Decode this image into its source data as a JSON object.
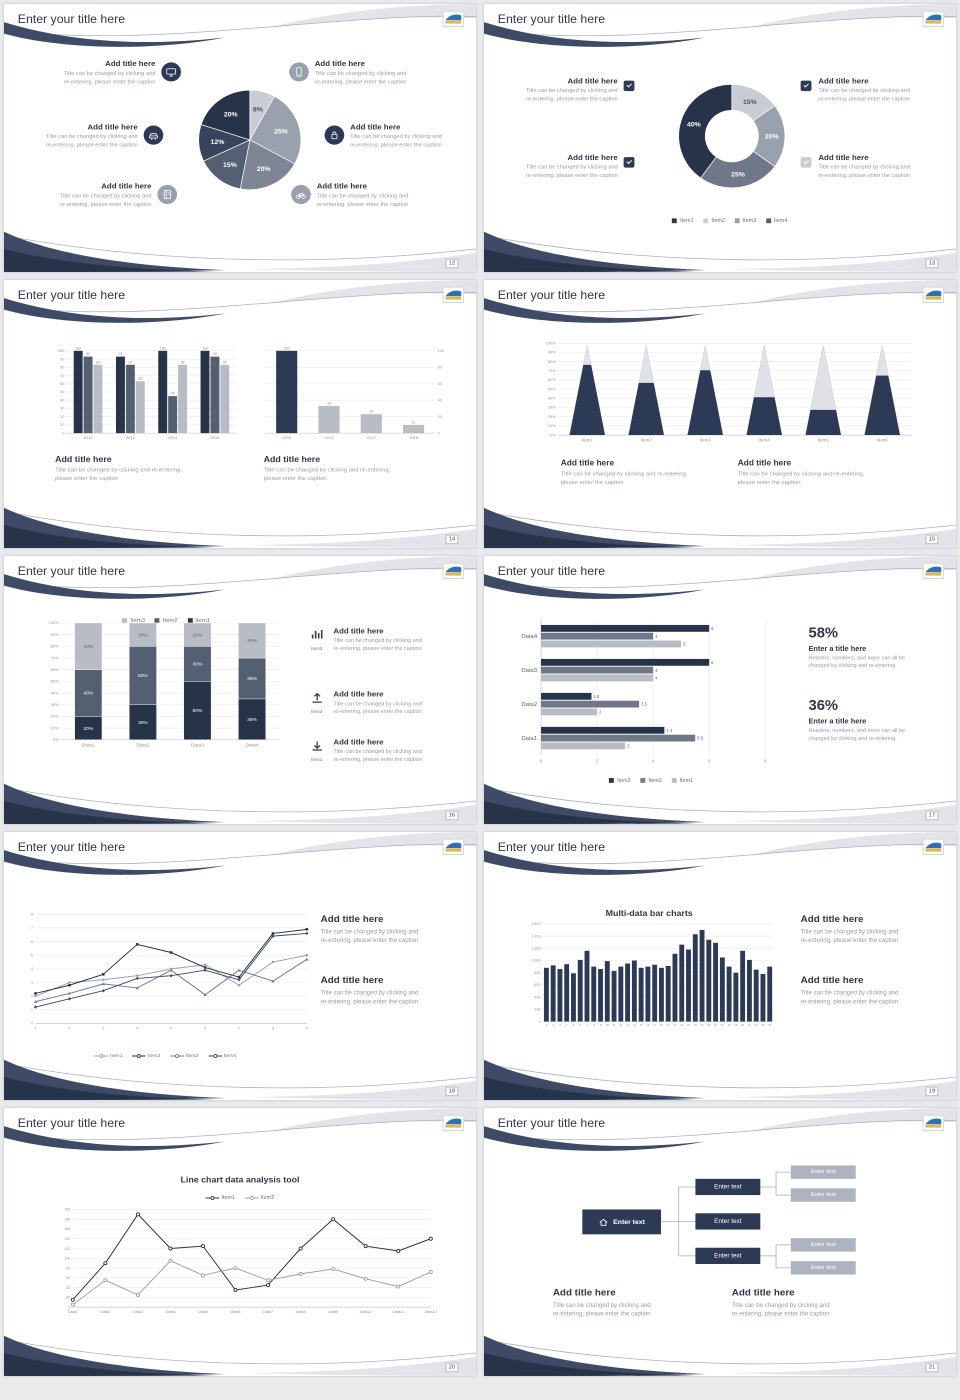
{
  "page_background": "#e9eaec",
  "palette": {
    "navy_dark": "#273349",
    "navy": "#2d3a55",
    "slate": "#555f72",
    "mid_gray": "#7e8695",
    "gray": "#9aa1ae",
    "light_gray": "#b8bcc5",
    "pale_gray": "#c9ccd4",
    "accent_blue": "#2f6fb5",
    "accent_yellow": "#e5b93e",
    "text_dark": "#30364a",
    "text_muted": "#989da8"
  },
  "common": {
    "slide_title": "Enter your title here",
    "add_title": "Add title here",
    "cap1": "Title can be changed by clicking and",
    "cap2": "re-entering, please enter the caption",
    "cap_b1": "Title can be changed by clicking and re-entering,",
    "cap_b2": "please enter the caption",
    "stat_title": "Enter a title here",
    "stat_cap1": "Headers, numbers, and more can all be",
    "stat_cap2": "changed by clicking and re-entering."
  },
  "slides": {
    "s12": {
      "page": "12"
    },
    "s13": {
      "page": "13"
    },
    "s14": {
      "page": "14"
    },
    "s15": {
      "page": "15"
    },
    "s16": {
      "page": "16",
      "rows": [
        {
          "label": "Item3"
        },
        {
          "label": "Item2"
        },
        {
          "label": "Item1"
        }
      ]
    },
    "s17": {
      "page": "17",
      "stats": [
        {
          "value": "58%"
        },
        {
          "value": "36%"
        }
      ]
    },
    "s18": {
      "page": "18"
    },
    "s19": {
      "page": "19"
    },
    "s20": {
      "page": "20"
    },
    "s21": {
      "page": "21"
    }
  },
  "chart_data": [
    {
      "id": "pie12",
      "type": "pie",
      "slide_page": "12",
      "slices": [
        {
          "label": "8%",
          "value": 8,
          "color": "#c9ccd4",
          "text": "#4a5162"
        },
        {
          "label": "25%",
          "value": 25,
          "color": "#9aa1ae",
          "text": "#ffffff"
        },
        {
          "label": "20%",
          "value": 20,
          "color": "#7e8695",
          "text": "#ffffff"
        },
        {
          "label": "15%",
          "value": 15,
          "color": "#555f72",
          "text": "#ffffff"
        },
        {
          "label": "12%",
          "value": 12,
          "color": "#39445c",
          "text": "#ffffff"
        },
        {
          "label": "20%",
          "value": 20,
          "color": "#273349",
          "text": "#ffffff"
        }
      ],
      "start_angle_deg": -90,
      "clockwise": true
    },
    {
      "id": "donut13",
      "type": "pie",
      "subtype": "donut",
      "slide_page": "13",
      "slices": [
        {
          "label": "15%",
          "value": 15,
          "color": "#c9ccd4",
          "text": "#4a5162"
        },
        {
          "label": "20%",
          "value": 20,
          "color": "#9aa1ae",
          "text": "#ffffff"
        },
        {
          "label": "25%",
          "value": 25,
          "color": "#6f7789",
          "text": "#ffffff"
        },
        {
          "label": "40%",
          "value": 40,
          "color": "#273349",
          "text": "#ffffff"
        }
      ],
      "legend": [
        {
          "label": "Item1",
          "color": "#273349"
        },
        {
          "label": "Item2",
          "color": "#c9ccd4"
        },
        {
          "label": "Item3",
          "color": "#9aa1ae"
        },
        {
          "label": "Item4",
          "color": "#555f72"
        }
      ]
    },
    {
      "id": "col14a",
      "type": "bar",
      "slide_page": "14",
      "categories": [
        "2010",
        "2012",
        "2014",
        "2016"
      ],
      "series": [
        {
          "name": "Series1",
          "color": "#273349",
          "values": [
            100,
            93,
            100,
            100
          ]
        },
        {
          "name": "Series2",
          "color": "#555f72",
          "values": [
            93,
            83,
            45,
            93
          ]
        },
        {
          "name": "Series3",
          "color": "#b8bcc5",
          "values": [
            83,
            63,
            83,
            83
          ]
        }
      ],
      "ylim": [
        0,
        100
      ],
      "ytick_step": 10,
      "value_labels": true
    },
    {
      "id": "col14b",
      "type": "bar",
      "slide_page": "14",
      "categories": [
        "2009",
        "2014",
        "2012",
        "2018"
      ],
      "series": [
        {
          "name": "Series1",
          "colors": [
            "#2d3a55",
            "#b8bcc5",
            "#b8bcc5",
            "#b8bcc5"
          ],
          "values": [
            100,
            33,
            23,
            10
          ]
        }
      ],
      "ylim": [
        0,
        100
      ],
      "ytick_step": 20,
      "axis_side": "right",
      "value_labels": true
    },
    {
      "id": "cone15",
      "type": "cone",
      "slide_page": "15",
      "unit": "%",
      "categories": [
        "Item1",
        "Item2",
        "Item3",
        "Item4",
        "Item5",
        "Item6"
      ],
      "values_pct": [
        78,
        58,
        72,
        42,
        28,
        66
      ],
      "ylim": [
        0,
        100
      ],
      "ytick_step": 10,
      "cone_color": "#e0e2e7",
      "fill_color": "#2d3a55"
    },
    {
      "id": "stack16",
      "type": "stacked-bar",
      "slide_page": "16",
      "unit": "%",
      "categories": [
        "Data1",
        "Data2",
        "Data3",
        "Data4"
      ],
      "series": [
        {
          "name": "Item1",
          "color": "#273349",
          "values": [
            20,
            30,
            50,
            35
          ]
        },
        {
          "name": "Item2",
          "color": "#555f72",
          "values": [
            40,
            50,
            30,
            35
          ]
        },
        {
          "name": "Item3",
          "color": "#b8bcc5",
          "values": [
            40,
            20,
            20,
            30
          ]
        }
      ],
      "legend": [
        {
          "label": "Item3",
          "color": "#b8bcc5"
        },
        {
          "label": "Item2",
          "color": "#555f72"
        },
        {
          "label": "Item1",
          "color": "#273349"
        }
      ],
      "ylim": [
        0,
        100
      ],
      "ytick_step": 10
    },
    {
      "id": "hbar17",
      "type": "hbar",
      "slide_page": "17",
      "categories": [
        "Data4",
        "Data3",
        "Data2",
        "Data1"
      ],
      "series": [
        {
          "name": "Item3",
          "color": "#273349",
          "values": [
            6,
            6,
            1.8,
            4.4
          ]
        },
        {
          "name": "Item2",
          "color": "#6f7789",
          "values": [
            4,
            4,
            3.5,
            5.5
          ]
        },
        {
          "name": "Item1",
          "color": "#b8bcc5",
          "values": [
            5,
            4,
            2,
            3
          ]
        }
      ],
      "legend": [
        {
          "label": "Item3",
          "color": "#273349"
        },
        {
          "label": "Item2",
          "color": "#6f7789"
        },
        {
          "label": "Item1",
          "color": "#b8bcc5"
        }
      ],
      "xlim": [
        0,
        8
      ],
      "xticks": [
        0,
        2,
        4,
        6,
        8
      ]
    },
    {
      "id": "line18",
      "type": "line",
      "slide_page": "18",
      "x": [
        "1",
        "2",
        "3",
        "4",
        "5",
        "6",
        "7",
        "8",
        "9"
      ],
      "series": [
        {
          "name": "Item1",
          "color": "#9aa1ae",
          "marker": "dot",
          "values": [
            2,
            3,
            3.2,
            3.5,
            4,
            4.3,
            2.8,
            4.5,
            5
          ]
        },
        {
          "name": "Item2",
          "color": "#273349",
          "marker": "square",
          "values": [
            2.2,
            2.8,
            3.6,
            5.8,
            5.2,
            4.1,
            3.4,
            6.6,
            6.9
          ]
        },
        {
          "name": "Item3",
          "color": "#6f7789",
          "marker": "triangle",
          "values": [
            1.6,
            2.2,
            2.9,
            2.6,
            3.9,
            2.1,
            3.9,
            3.1,
            4.7
          ]
        },
        {
          "name": "Item4",
          "color": "#3c4964",
          "marker": "diamond",
          "values": [
            1.2,
            1.8,
            2.4,
            3.3,
            3.5,
            3.9,
            3.2,
            6.4,
            6.6
          ]
        }
      ],
      "ylim": [
        0,
        8
      ],
      "ytick_step": 1
    },
    {
      "id": "bars19",
      "type": "bar",
      "slide_page": "19",
      "title": "Multi-data bar charts",
      "fmt": "comma",
      "categories": [
        "1",
        "2",
        "3",
        "4",
        "5",
        "6",
        "7",
        "8",
        "9",
        "10",
        "11",
        "12",
        "13",
        "14",
        "15",
        "16",
        "17",
        "18",
        "19",
        "20",
        "21",
        "22",
        "23",
        "24",
        "25",
        "26",
        "27",
        "28",
        "29",
        "30",
        "31",
        "32",
        "33",
        "34"
      ],
      "series": [
        {
          "name": "Series1",
          "color": "#2d3a55",
          "values": [
            880,
            920,
            860,
            940,
            790,
            1010,
            1160,
            900,
            860,
            990,
            830,
            900,
            950,
            1000,
            880,
            900,
            930,
            880,
            910,
            1110,
            1260,
            1180,
            1430,
            1500,
            1340,
            1290,
            1050,
            900,
            800,
            1160,
            1010,
            850,
            780,
            900
          ]
        }
      ],
      "ylim": [
        0,
        1600
      ],
      "ytick_step": 200
    },
    {
      "id": "line20",
      "type": "line",
      "slide_page": "20",
      "title": "Line chart data analysis tool",
      "categories": [
        "Data1",
        "Data2",
        "Data3",
        "Data4",
        "Data5",
        "Data6",
        "Data7",
        "Data8",
        "Data9",
        "Data10",
        "Data11",
        "Data12"
      ],
      "series": [
        {
          "name": "Item1",
          "color": "#273349",
          "marker": "circle",
          "values": [
            15,
            90,
            190,
            120,
            125,
            35,
            45,
            120,
            180,
            125,
            115,
            140
          ]
        },
        {
          "name": "Item2",
          "color": "#9aa1ae",
          "marker": "circle",
          "values": [
            5,
            55,
            25,
            95,
            65,
            80,
            55,
            68,
            78,
            58,
            42,
            72
          ]
        }
      ],
      "ylim": [
        0,
        200
      ],
      "ytick_step": 20
    },
    {
      "id": "org21",
      "type": "diagram",
      "slide_page": "21",
      "root_label": "Enter text",
      "child_labels": [
        "Enter text",
        "Enter text",
        "Enter text"
      ],
      "leaf_labels": [
        "Enter text",
        "Enter text",
        "Enter text",
        "Enter text"
      ]
    }
  ]
}
